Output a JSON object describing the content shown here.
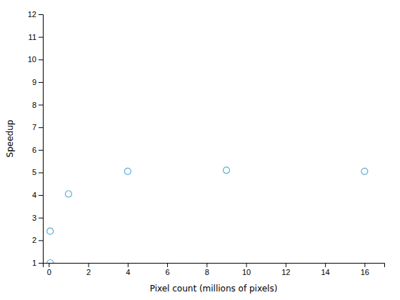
{
  "chart_data": {
    "type": "scatter",
    "x": [
      0.07,
      0.07,
      1.0,
      4.0,
      9.0,
      16.0
    ],
    "y": [
      1.0,
      2.4,
      4.05,
      5.05,
      5.1,
      5.05
    ],
    "xlabel": "Pixel count (millions of pixels)",
    "ylabel": "Speedup",
    "xlim": [
      -0.3,
      17
    ],
    "ylim": [
      1,
      12
    ],
    "xticks": [
      0,
      2,
      4,
      6,
      8,
      10,
      12,
      14,
      16
    ],
    "yticks": [
      1,
      2,
      3,
      4,
      5,
      6,
      7,
      8,
      9,
      10,
      11,
      12
    ],
    "color": "#5bafd6",
    "marker": "circle",
    "grid": false
  }
}
